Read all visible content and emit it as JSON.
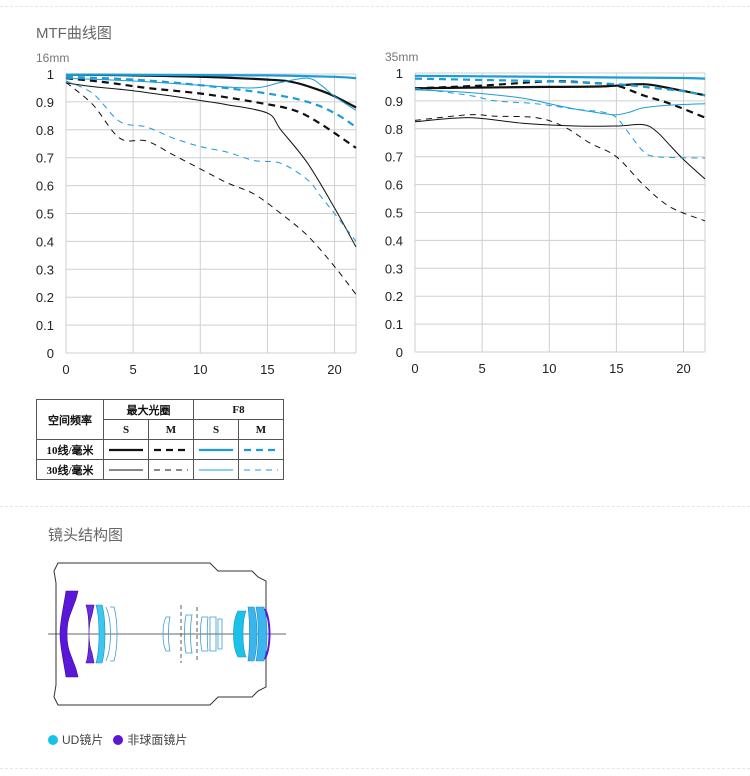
{
  "page": {
    "mtf_title": "MTF曲线图",
    "structure_title": "镜头结构图"
  },
  "legend": {
    "header_freq": "空间频率",
    "header_max": "最大光圈",
    "header_f8": "F8",
    "s": "S",
    "m": "M",
    "row_10": "10线/毫米",
    "row_30": "30线/毫米",
    "colors": {
      "black": "#111111",
      "blue": "#1a9cd8"
    }
  },
  "lens_legend": {
    "ud": "UD镜片",
    "aspherical": "非球面镜片",
    "ud_color": "#16c2e6",
    "asph_color": "#5b17d8"
  },
  "chart_data": [
    {
      "type": "line",
      "title": "16mm",
      "xlim": [
        0,
        21.6
      ],
      "ylim": [
        0,
        1
      ],
      "xticks": [
        0,
        5,
        10,
        15,
        20
      ],
      "yticks": [
        "0",
        "0.1",
        "0.2",
        "0.3",
        "0.4",
        "0.5",
        "0.6",
        "0.7",
        "0.8",
        "0.9",
        "1"
      ],
      "grid": true,
      "series": [
        {
          "style": "black-solid-thick",
          "x": [
            0,
            5,
            10,
            15,
            17,
            19,
            20,
            21.6
          ],
          "y": [
            0.998,
            0.995,
            0.99,
            0.98,
            0.97,
            0.94,
            0.92,
            0.88
          ]
        },
        {
          "style": "black-dashed-thick",
          "x": [
            0,
            3,
            6,
            10,
            14,
            17,
            19,
            21.6
          ],
          "y": [
            0.985,
            0.97,
            0.95,
            0.93,
            0.9,
            0.87,
            0.82,
            0.735
          ]
        },
        {
          "style": "blue-solid-thick",
          "x": [
            0,
            5,
            10,
            15,
            20,
            21.6
          ],
          "y": [
            0.998,
            0.997,
            0.996,
            0.995,
            0.99,
            0.985
          ]
        },
        {
          "style": "blue-dashed-thick",
          "x": [
            0,
            5,
            10,
            15,
            18,
            20,
            21.6
          ],
          "y": [
            0.99,
            0.98,
            0.96,
            0.93,
            0.9,
            0.86,
            0.81
          ]
        },
        {
          "style": "black-solid-thin",
          "x": [
            0,
            2,
            5,
            8,
            10,
            12,
            15,
            16,
            18,
            20,
            21.6
          ],
          "y": [
            0.968,
            0.955,
            0.94,
            0.92,
            0.905,
            0.89,
            0.86,
            0.8,
            0.68,
            0.52,
            0.38
          ]
        },
        {
          "style": "black-dashed-thin",
          "x": [
            0,
            2,
            4,
            6,
            8,
            10,
            12,
            14,
            16,
            18,
            20,
            21.6
          ],
          "y": [
            0.97,
            0.89,
            0.77,
            0.76,
            0.71,
            0.66,
            0.61,
            0.57,
            0.5,
            0.42,
            0.31,
            0.21
          ]
        },
        {
          "style": "blue-solid-thin",
          "x": [
            0,
            5,
            10,
            14,
            16,
            18,
            19,
            20,
            21.6
          ],
          "y": [
            0.985,
            0.975,
            0.96,
            0.95,
            0.97,
            0.985,
            0.96,
            0.92,
            0.87
          ]
        },
        {
          "style": "blue-dashed-thin",
          "x": [
            0,
            2,
            4,
            6,
            8,
            10,
            12,
            14,
            16,
            18,
            19,
            20,
            21.6
          ],
          "y": [
            0.975,
            0.93,
            0.83,
            0.81,
            0.77,
            0.74,
            0.72,
            0.69,
            0.68,
            0.62,
            0.56,
            0.5,
            0.4
          ]
        }
      ]
    },
    {
      "type": "line",
      "title": "35mm",
      "xlim": [
        0,
        21.6
      ],
      "ylim": [
        0,
        1
      ],
      "xticks": [
        0,
        5,
        10,
        15,
        20
      ],
      "yticks": [
        "0",
        "0.1",
        "0.2",
        "0.3",
        "0.4",
        "0.5",
        "0.6",
        "0.7",
        "0.8",
        "0.9",
        "1"
      ],
      "grid": true,
      "series": [
        {
          "style": "black-solid-thick",
          "x": [
            0,
            5,
            10,
            14,
            17,
            19,
            21.6
          ],
          "y": [
            0.945,
            0.948,
            0.95,
            0.952,
            0.96,
            0.945,
            0.92
          ]
        },
        {
          "style": "black-dashed-thick",
          "x": [
            0,
            5,
            10,
            13,
            15,
            17,
            19,
            21.6
          ],
          "y": [
            0.945,
            0.955,
            0.97,
            0.965,
            0.955,
            0.92,
            0.89,
            0.84
          ]
        },
        {
          "style": "blue-solid-thick",
          "x": [
            0,
            5,
            10,
            15,
            20,
            21.6
          ],
          "y": [
            0.99,
            0.988,
            0.986,
            0.984,
            0.982,
            0.98
          ]
        },
        {
          "style": "blue-dashed-thick",
          "x": [
            0,
            5,
            10,
            15,
            18,
            20,
            21.6
          ],
          "y": [
            0.98,
            0.975,
            0.97,
            0.96,
            0.945,
            0.935,
            0.92
          ]
        },
        {
          "style": "black-solid-thin",
          "x": [
            0,
            4,
            8,
            12,
            15,
            17,
            18,
            19,
            20,
            21.6
          ],
          "y": [
            0.825,
            0.84,
            0.82,
            0.81,
            0.81,
            0.815,
            0.79,
            0.74,
            0.69,
            0.62
          ]
        },
        {
          "style": "black-dashed-thin",
          "x": [
            0,
            4,
            6,
            9,
            11,
            13,
            15,
            17,
            19,
            21.6
          ],
          "y": [
            0.83,
            0.85,
            0.845,
            0.84,
            0.81,
            0.75,
            0.7,
            0.6,
            0.52,
            0.47
          ]
        },
        {
          "style": "blue-solid-thin",
          "x": [
            0,
            4,
            8,
            10,
            12,
            14,
            15,
            16,
            17,
            19,
            21.6
          ],
          "y": [
            0.94,
            0.93,
            0.91,
            0.89,
            0.87,
            0.855,
            0.85,
            0.86,
            0.875,
            0.885,
            0.89
          ]
        },
        {
          "style": "blue-dashed-thin",
          "x": [
            0,
            4,
            6,
            9,
            12,
            14,
            15,
            16,
            17,
            18,
            21.6
          ],
          "y": [
            0.945,
            0.92,
            0.9,
            0.89,
            0.87,
            0.86,
            0.84,
            0.78,
            0.72,
            0.7,
            0.695
          ]
        }
      ]
    }
  ]
}
